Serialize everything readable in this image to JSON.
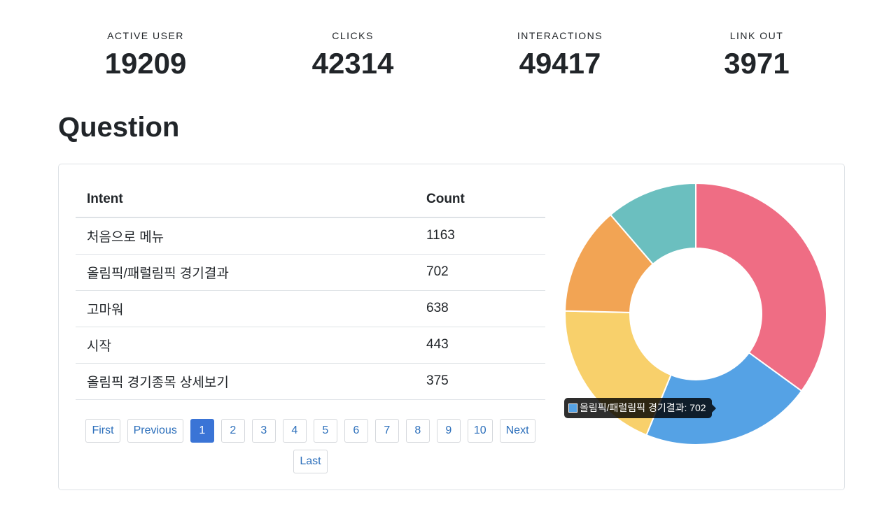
{
  "stats": [
    {
      "label": "ACTIVE USER",
      "value": "19209"
    },
    {
      "label": "CLICKS",
      "value": "42314"
    },
    {
      "label": "INTERACTIONS",
      "value": "49417"
    },
    {
      "label": "LINK OUT",
      "value": "3971"
    }
  ],
  "section_title": "Question",
  "table": {
    "headers": [
      "Intent",
      "Count"
    ],
    "rows": [
      [
        "처음으로 메뉴",
        "1163"
      ],
      [
        "올림픽/패럴림픽 경기결과",
        "702"
      ],
      [
        "고마워",
        "638"
      ],
      [
        "시작",
        "443"
      ],
      [
        "올림픽 경기종목 상세보기",
        "375"
      ]
    ]
  },
  "pagination": {
    "first": "First",
    "previous": "Previous",
    "pages": [
      "1",
      "2",
      "3",
      "4",
      "5",
      "6",
      "7",
      "8",
      "9",
      "10"
    ],
    "active_page": "1",
    "next": "Next",
    "last": "Last"
  },
  "tooltip": {
    "text": "올림픽/패럴림픽 경기결과: 702",
    "color": "#55a2e5"
  },
  "chart_data": {
    "type": "pie",
    "variant": "doughnut",
    "categories": [
      "처음으로 메뉴",
      "올림픽/패럴림픽 경기결과",
      "고마워",
      "시작",
      "올림픽 경기종목 상세보기"
    ],
    "values": [
      1163,
      702,
      638,
      443,
      375
    ],
    "colors": [
      "#ef6d84",
      "#55a2e5",
      "#f8d06b",
      "#f2a454",
      "#6bbfbf"
    ]
  }
}
